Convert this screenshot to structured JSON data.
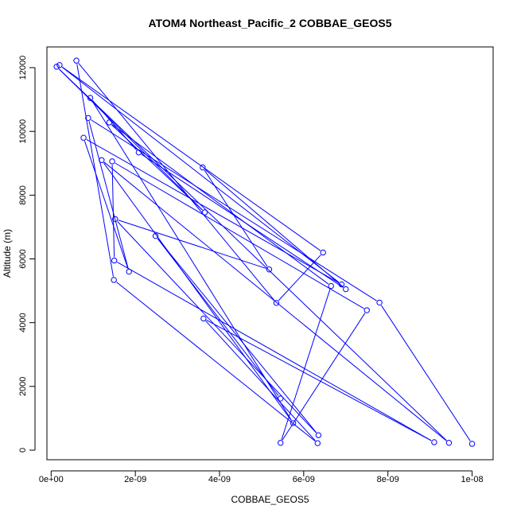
{
  "chart_data": {
    "type": "line",
    "title": "ATOM4 Northeast_Pacific_2 COBBAE_GEOS5",
    "xlabel": "COBBAE_GEOS5",
    "ylabel": "Altitude (m)",
    "xlim": [
      -1e-10,
      1.05e-08
    ],
    "ylim": [
      -300,
      12650
    ],
    "x_ticks": [
      {
        "value": 0,
        "label": "0e+00"
      },
      {
        "value": 2e-09,
        "label": "2e-09"
      },
      {
        "value": 4e-09,
        "label": "4e-09"
      },
      {
        "value": 6e-09,
        "label": "6e-09"
      },
      {
        "value": 8e-09,
        "label": "8e-09"
      },
      {
        "value": 1e-08,
        "label": "1e-08"
      }
    ],
    "y_ticks": [
      {
        "value": 0,
        "label": "0"
      },
      {
        "value": 2000,
        "label": "2000"
      },
      {
        "value": 4000,
        "label": "4000"
      },
      {
        "value": 6000,
        "label": "6000"
      },
      {
        "value": 8000,
        "label": "8000"
      },
      {
        "value": 10000,
        "label": "10000"
      },
      {
        "value": 12000,
        "label": "12000"
      }
    ],
    "colors": {
      "series": "#0000ff",
      "axis": "#000000"
    },
    "grid": false,
    "series": [
      {
        "marker": "open-circle",
        "points": [
          {
            "x": 1e-08,
            "y": 200
          },
          {
            "x": 7.8e-09,
            "y": 4630
          },
          {
            "x": 8.8e-10,
            "y": 10420
          },
          {
            "x": 1.85e-09,
            "y": 5600
          },
          {
            "x": 7.7e-10,
            "y": 9800
          },
          {
            "x": 6.9e-09,
            "y": 5200
          },
          {
            "x": 2e-10,
            "y": 12080
          },
          {
            "x": 6.46e-09,
            "y": 6200
          },
          {
            "x": 5.35e-09,
            "y": 4620
          },
          {
            "x": 6e-10,
            "y": 12220
          },
          {
            "x": 1.49e-09,
            "y": 5340
          },
          {
            "x": 6.33e-09,
            "y": 220
          },
          {
            "x": 3.62e-09,
            "y": 4130
          },
          {
            "x": 9.1e-09,
            "y": 250
          },
          {
            "x": 1.5e-09,
            "y": 5950
          },
          {
            "x": 1.45e-09,
            "y": 9060
          },
          {
            "x": 7.5e-09,
            "y": 4390
          },
          {
            "x": 5.45e-09,
            "y": 230
          },
          {
            "x": 6.65e-09,
            "y": 5150
          },
          {
            "x": 1.38e-09,
            "y": 10280
          },
          {
            "x": 3.65e-09,
            "y": 7460
          },
          {
            "x": 1.3e-10,
            "y": 12030
          },
          {
            "x": 9.45e-09,
            "y": 230
          },
          {
            "x": 1.2e-09,
            "y": 9100
          },
          {
            "x": 5.75e-09,
            "y": 850
          },
          {
            "x": 9.3e-10,
            "y": 11050
          },
          {
            "x": 2.08e-09,
            "y": 9340
          },
          {
            "x": 7e-09,
            "y": 5050
          },
          {
            "x": 3.6e-09,
            "y": 8870
          },
          {
            "x": 5.18e-09,
            "y": 5670
          },
          {
            "x": 1.52e-09,
            "y": 7250
          },
          {
            "x": 6.35e-09,
            "y": 470
          },
          {
            "x": 2.48e-09,
            "y": 6720
          },
          {
            "x": 5.45e-09,
            "y": 1620
          }
        ]
      }
    ]
  }
}
